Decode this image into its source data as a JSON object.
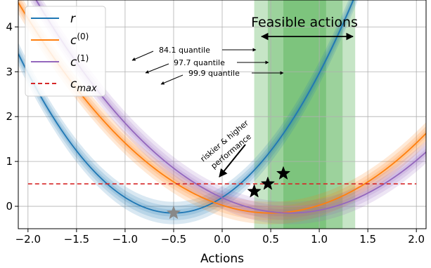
{
  "chart_data": {
    "type": "line",
    "xlabel": "Actions",
    "ylabel": "",
    "xlim": [
      -2.1,
      2.1
    ],
    "ylim": [
      -0.5,
      4.6
    ],
    "xticks": [
      -2.0,
      -1.5,
      -1.0,
      -0.5,
      0.0,
      0.5,
      1.0,
      1.5,
      2.0
    ],
    "xtick_labels": [
      "−2.0",
      "−1.5",
      "−1.0",
      "−0.5",
      "0.0",
      "0.5",
      "1.0",
      "1.5",
      "2.0"
    ],
    "yticks": [
      0,
      1,
      2,
      3,
      4
    ],
    "ytick_labels": [
      "0",
      "1",
      "2",
      "3",
      "4"
    ],
    "grid": true,
    "legend_position": "top-left",
    "series": [
      {
        "name": "r",
        "legend_base": "r",
        "legend_sup": "",
        "legend_sub": "",
        "color": "#1f77b4",
        "shape": "parabola",
        "vertex_x": -0.5,
        "vertex_y": -0.15,
        "curvature": 1.387
      },
      {
        "name": "c(0)",
        "legend_base": "c",
        "legend_sup": "(0)",
        "legend_sub": "",
        "color": "#ff7f0e",
        "shape": "parabola",
        "vertex_x": 0.5,
        "vertex_y": -0.15,
        "curvature": 0.694
      },
      {
        "name": "c(1)",
        "legend_base": "c",
        "legend_sup": "(1)",
        "legend_sub": "",
        "color": "#9467bd",
        "shape": "parabola",
        "vertex_x": 0.7,
        "vertex_y": -0.15,
        "curvature": 0.694
      },
      {
        "name": "c_max",
        "legend_base": "c",
        "legend_sup": "",
        "legend_sub": "max",
        "color": "#d62728",
        "shape": "constant",
        "value": 0.5,
        "style": "dashed"
      }
    ],
    "uncertainty_band_offsets": [
      0.08,
      0.16,
      0.25
    ],
    "feasible_regions": [
      {
        "x": [
          0.33,
          1.37
        ],
        "level": "99.9 quantile"
      },
      {
        "x": [
          0.47,
          1.24
        ],
        "level": "97.7 quantile"
      },
      {
        "x": [
          0.63,
          1.07
        ],
        "level": "84.1 quantile"
      }
    ],
    "feasible_color": "#2ca02c",
    "stars": [
      {
        "x": -0.5,
        "y": -0.15,
        "color": "#888888"
      },
      {
        "x": 0.33,
        "y": 0.33,
        "color": "#000000"
      },
      {
        "x": 0.47,
        "y": 0.5,
        "color": "#000000"
      },
      {
        "x": 0.63,
        "y": 0.73,
        "color": "#000000"
      }
    ],
    "annotations": {
      "feasible_title": "Feasible actions",
      "q841": "84.1 quantile",
      "q977": "97.7 quantile",
      "q999": "99.9 quantile",
      "risk_line1": "riskier & higher",
      "risk_line2": "performance"
    }
  }
}
